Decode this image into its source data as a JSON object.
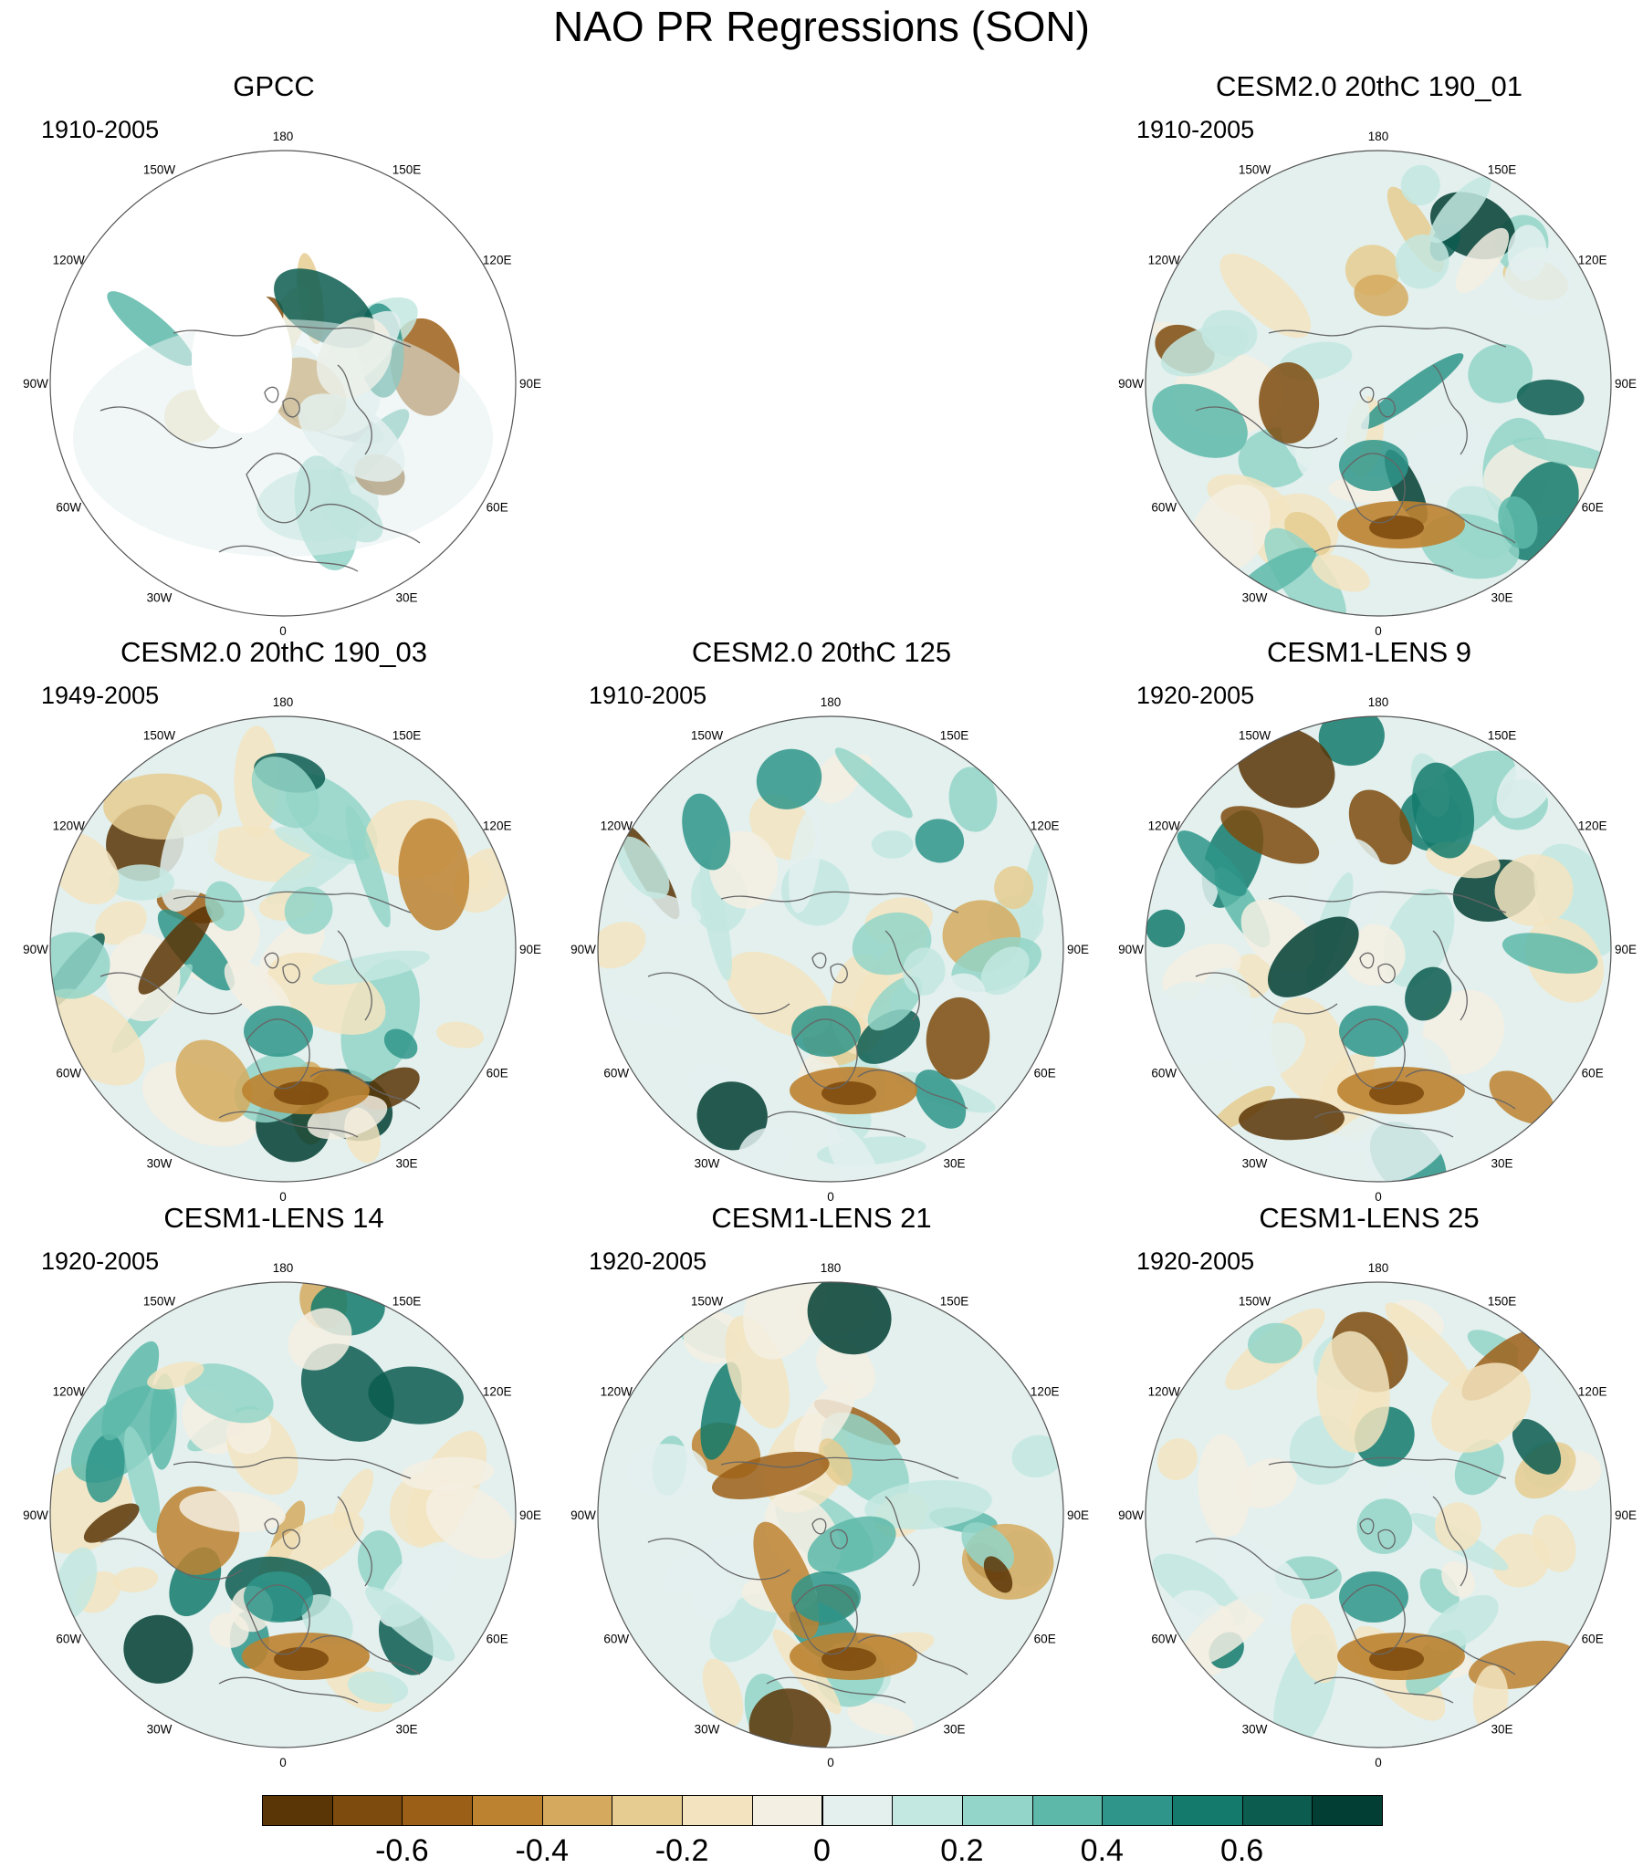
{
  "title": "NAO PR Regressions (SON)",
  "lon_labels": [
    "180",
    "150E",
    "120E",
    "90E",
    "60E",
    "30E",
    "0",
    "30W",
    "60W",
    "90W",
    "120W",
    "150W"
  ],
  "panels": [
    {
      "title": "GPCC",
      "period": "1910-2005",
      "style": "obs"
    },
    {
      "title": "CESM2.0 20thC 190_01",
      "period": "1910-2005",
      "style": "model"
    },
    {
      "title": "CESM2.0 20thC 190_03",
      "period": "1949-2005",
      "style": "model"
    },
    {
      "title": "CESM2.0 20thC 125",
      "period": "1910-2005",
      "style": "model"
    },
    {
      "title": "CESM1-LENS 9",
      "period": "1920-2005",
      "style": "model"
    },
    {
      "title": "CESM1-LENS 14",
      "period": "1920-2005",
      "style": "model"
    },
    {
      "title": "CESM1-LENS 21",
      "period": "1920-2005",
      "style": "model"
    },
    {
      "title": "CESM1-LENS 25",
      "period": "1920-2005",
      "style": "model"
    }
  ],
  "colors": {
    "scale": [
      "#5a3506",
      "#7e4b0e",
      "#9c5f17",
      "#bd8230",
      "#d5aa5e",
      "#e6cc91",
      "#f3e4bf",
      "#f4efe3",
      "#e3f0ee",
      "#c3e8e1",
      "#93d5c8",
      "#5db8a9",
      "#2f958a",
      "#137a6c",
      "#0c5c50",
      "#023e33"
    ],
    "coast": "#666666",
    "frame": "#555555"
  },
  "chart_data": {
    "type": "heatmap",
    "projection": "north-polar-stereographic",
    "variable": "Precipitation regression onto NAO, SON",
    "colorbar": {
      "levels": [
        -0.7,
        -0.6,
        -0.5,
        -0.4,
        -0.3,
        -0.2,
        -0.1,
        0,
        0.1,
        0.2,
        0.3,
        0.4,
        0.5,
        0.6,
        0.7
      ],
      "tick_labels": [
        "-0.6",
        "-0.4",
        "-0.2",
        "0",
        "0.2",
        "0.4",
        "0.6"
      ],
      "tick_values": [
        -0.6,
        -0.4,
        -0.2,
        0,
        0.2,
        0.4,
        0.6
      ]
    }
  }
}
